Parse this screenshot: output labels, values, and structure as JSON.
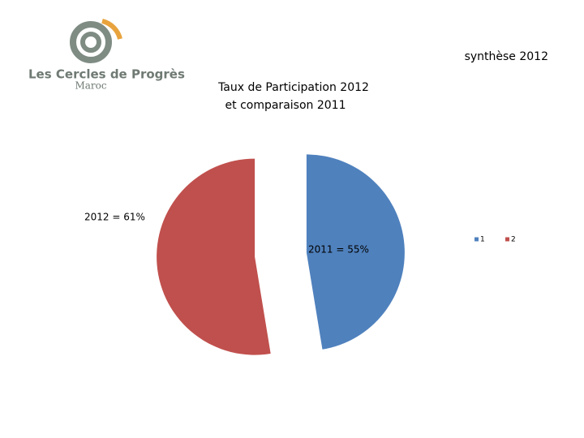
{
  "header": {
    "logo_name": "Les Cercles de Progrès",
    "logo_sub": "Maroc",
    "tag": "synthèse 2012"
  },
  "chart_data": {
    "type": "pie",
    "title": [
      "Taux de Participation 2012",
      "et comparaison 2011"
    ],
    "categories": [
      "1",
      "2"
    ],
    "values": [
      55,
      61
    ],
    "value_labels": [
      "2011 = 55%",
      "2012 = 61%"
    ],
    "colors": [
      "#4f81bd",
      "#c0504d"
    ],
    "legend": "right"
  }
}
